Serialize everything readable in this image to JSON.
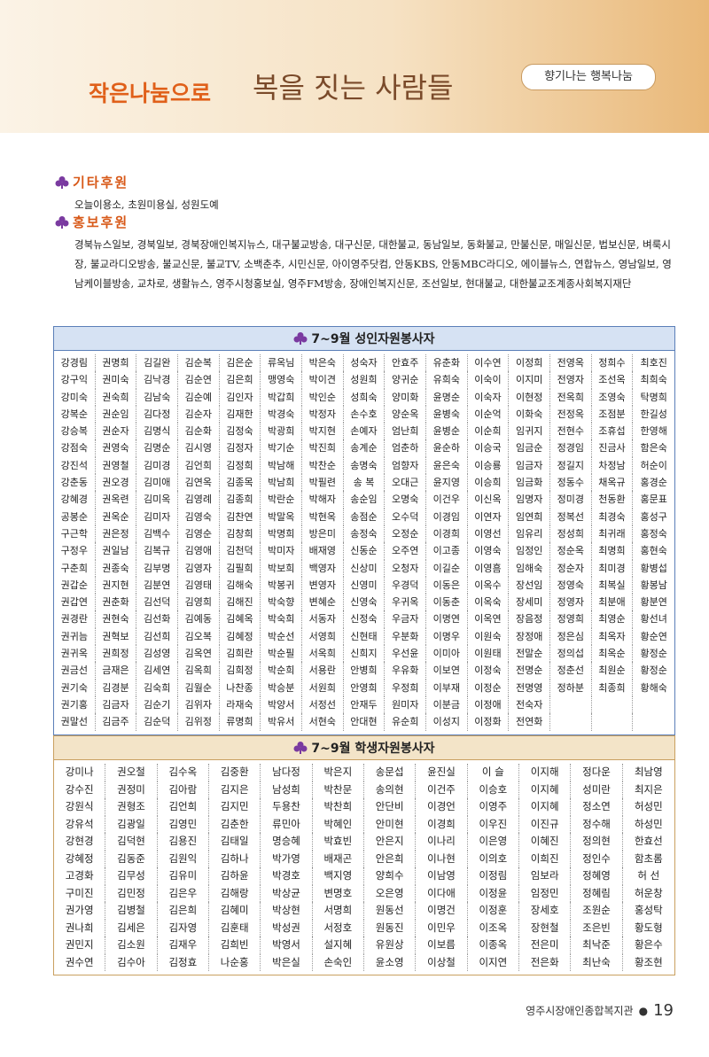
{
  "header": {
    "title": "작은나눔으로",
    "subtitle": "복을 짓는 사람들",
    "badge": "향기나는 행복나눔"
  },
  "sections": [
    {
      "heading": "기타후원",
      "text": "오늘이용소, 초원미용실, 성원도예"
    },
    {
      "heading": "홍보후원",
      "text": "경북뉴스일보, 경북일보, 경북장애인복지뉴스, 대구불교방송, 대구신문, 대한불교, 동남일보, 동화불교, 만불신문, 매일신문, 법보신문, 벼룩시장, 불교라디오방송, 불교신문, 불교TV, 소백춘추, 시민신문, 아이영주닷컴, 안동KBS, 안동MBC라디오, 에이블뉴스, 연합뉴스, 영남일보, 영남케이블방송, 교차로, 생활뉴스, 영주시청홍보실, 영주FM방송, 장애인복지신문, 조선일보, 현대불교, 대한불교조계종사회복지재단"
    }
  ],
  "tables": [
    {
      "title": "7~9월 성인자원봉사자",
      "rows": [
        [
          "강경림",
          "권명희",
          "김길완",
          "김순복",
          "김은순",
          "류옥님",
          "박은숙",
          "성숙자",
          "안효주",
          "유춘화",
          "이수연",
          "이정희",
          "전영옥",
          "정희수",
          "최호진"
        ],
        [
          "강구익",
          "권미숙",
          "김낙경",
          "김순연",
          "김은희",
          "맹영숙",
          "박이견",
          "성원희",
          "양귀순",
          "유희숙",
          "이숙이",
          "이지미",
          "전영자",
          "조선옥",
          "최희숙"
        ],
        [
          "강미숙",
          "권숙희",
          "김남숙",
          "김순예",
          "김인자",
          "박갑희",
          "박인순",
          "성희숙",
          "양미화",
          "윤명순",
          "이숙자",
          "이현정",
          "전옥희",
          "조영숙",
          "탁명희"
        ],
        [
          "강복순",
          "권순임",
          "김다정",
          "김순자",
          "김재한",
          "박경숙",
          "박정자",
          "손수호",
          "양순옥",
          "윤병숙",
          "이순억",
          "이화숙",
          "전정옥",
          "조점분",
          "한길성"
        ],
        [
          "강승복",
          "권순자",
          "김명식",
          "김순화",
          "김정숙",
          "박광희",
          "박지현",
          "손예자",
          "엄난희",
          "윤병순",
          "이순희",
          "임귀지",
          "전현수",
          "조휴섭",
          "한영해"
        ],
        [
          "강점숙",
          "권영숙",
          "김명순",
          "김시영",
          "김정자",
          "박기순",
          "박진희",
          "송계순",
          "엄춘하",
          "윤순하",
          "이승국",
          "임금순",
          "정경임",
          "진금사",
          "함은숙"
        ],
        [
          "강진석",
          "권영철",
          "김미경",
          "김언희",
          "김정희",
          "박남해",
          "박찬순",
          "송명숙",
          "엄향자",
          "윤은숙",
          "이승룡",
          "임금자",
          "정길지",
          "차정남",
          "허순이"
        ],
        [
          "강춘동",
          "권오경",
          "김미애",
          "김연옥",
          "김종목",
          "박남희",
          "박필련",
          "송 복",
          "오대근",
          "윤지영",
          "이승희",
          "임금화",
          "정동수",
          "채옥규",
          "홍경순"
        ],
        [
          "강혜경",
          "권옥련",
          "김미옥",
          "김영례",
          "김종희",
          "박란순",
          "박해자",
          "송순임",
          "오명숙",
          "이건우",
          "이신옥",
          "임명자",
          "정미경",
          "천동환",
          "홍문표"
        ],
        [
          "공봉순",
          "권옥순",
          "김미자",
          "김영숙",
          "김찬연",
          "박말옥",
          "박현옥",
          "송점순",
          "오수덕",
          "이경임",
          "이연자",
          "임연희",
          "정복선",
          "최경숙",
          "홍성구"
        ],
        [
          "구근학",
          "권은정",
          "김백수",
          "김영순",
          "김창희",
          "박명희",
          "방은미",
          "송정숙",
          "오정순",
          "이경희",
          "이영선",
          "임유리",
          "정성희",
          "최귀래",
          "홍정숙"
        ],
        [
          "구정우",
          "권일남",
          "김복규",
          "김영애",
          "김천덕",
          "박미자",
          "배재영",
          "신동순",
          "오주연",
          "이고종",
          "이영숙",
          "임정인",
          "정순옥",
          "최명희",
          "홍현숙"
        ],
        [
          "구춘희",
          "권종숙",
          "김부명",
          "김영자",
          "김필희",
          "박보희",
          "백영자",
          "신상미",
          "오청자",
          "이길순",
          "이영흠",
          "임해숙",
          "정순자",
          "최미경",
          "황병섭"
        ],
        [
          "권갑순",
          "권지현",
          "김분연",
          "김영태",
          "김해숙",
          "박봉귀",
          "변영자",
          "신영미",
          "우경덕",
          "이동은",
          "이옥수",
          "장선임",
          "정영숙",
          "최복실",
          "황봉남"
        ],
        [
          "권갑연",
          "권춘화",
          "김선덕",
          "김영희",
          "김해진",
          "박숙향",
          "변혜순",
          "신영숙",
          "우귀옥",
          "이동춘",
          "이옥숙",
          "장세미",
          "정영자",
          "최분애",
          "황분연"
        ],
        [
          "권경란",
          "권현숙",
          "김선화",
          "김예동",
          "김혜옥",
          "박숙희",
          "서동자",
          "신정숙",
          "우금자",
          "이명연",
          "이옥연",
          "장음정",
          "정영희",
          "최영순",
          "황선녀"
        ],
        [
          "권귀늠",
          "권혁보",
          "김선희",
          "김오복",
          "김혜정",
          "박순선",
          "서영희",
          "신현태",
          "우분화",
          "이명우",
          "이원숙",
          "장정애",
          "정은심",
          "최옥자",
          "황순연"
        ],
        [
          "권귀옥",
          "권희정",
          "김성영",
          "김옥연",
          "김희란",
          "박순필",
          "서옥희",
          "신희지",
          "우선윤",
          "이미아",
          "이원태",
          "전말순",
          "정의섭",
          "최옥순",
          "황정순"
        ],
        [
          "권금선",
          "금재은",
          "김세연",
          "김옥희",
          "김희정",
          "박순희",
          "서용란",
          "안병희",
          "우유화",
          "이보연",
          "이정숙",
          "전명순",
          "정춘선",
          "최원순",
          "황정순"
        ],
        [
          "권기숙",
          "김경분",
          "김숙희",
          "김월순",
          "나찬종",
          "박승분",
          "서원희",
          "안영희",
          "우정희",
          "이부재",
          "이정순",
          "전명영",
          "정하분",
          "최종희",
          "황해숙"
        ],
        [
          "권기홍",
          "김금자",
          "김순기",
          "김위자",
          "라재숙",
          "박양서",
          "서정선",
          "안재두",
          "원미자",
          "이분금",
          "이정애",
          "전숙자"
        ],
        [
          "권말선",
          "김금주",
          "김순덕",
          "김위정",
          "류명희",
          "박유서",
          "서현숙",
          "안대현",
          "유순희",
          "이성지",
          "이정화",
          "전연화"
        ]
      ]
    },
    {
      "title": "7~9월 학생자원봉사자",
      "rows": [
        [
          "강미나",
          "권오철",
          "김수옥",
          "김중환",
          "남다정",
          "박은지",
          "송문섭",
          "윤진실",
          "이 슬",
          "이지해",
          "정다운",
          "최남영"
        ],
        [
          "강수진",
          "권정미",
          "김아람",
          "김지은",
          "남성희",
          "박찬문",
          "송의현",
          "이건주",
          "이승호",
          "이지혜",
          "성미란",
          "최지은"
        ],
        [
          "강원식",
          "권형조",
          "김언희",
          "김지민",
          "두용찬",
          "박찬희",
          "안단비",
          "이경언",
          "이영주",
          "이지혜",
          "정소연",
          "허성민"
        ],
        [
          "강유석",
          "김광일",
          "김영민",
          "김춘한",
          "류민아",
          "박혜인",
          "안미현",
          "이경희",
          "이우진",
          "이진규",
          "정수해",
          "하성민"
        ],
        [
          "강현경",
          "김덕현",
          "김용진",
          "김태일",
          "명승혜",
          "박효빈",
          "안은지",
          "이나리",
          "이은영",
          "이혜진",
          "정의현",
          "한효선"
        ],
        [
          "강혜정",
          "김동준",
          "김원익",
          "김하나",
          "박가영",
          "배재곤",
          "안은희",
          "이나현",
          "이의호",
          "이희진",
          "정인수",
          "함초롬"
        ],
        [
          "고경화",
          "김무성",
          "김유미",
          "김하윤",
          "박경호",
          "백지영",
          "양희수",
          "이남영",
          "이정림",
          "임보라",
          "정혜영",
          "허 선"
        ],
        [
          "구미진",
          "김민정",
          "김은우",
          "김해랑",
          "박상균",
          "변명호",
          "오은영",
          "이다애",
          "이정윤",
          "임정민",
          "정혜림",
          "허운창"
        ],
        [
          "권가영",
          "김병철",
          "김은희",
          "김혜미",
          "박상현",
          "서명희",
          "원동선",
          "이명건",
          "이정훈",
          "장세호",
          "조원순",
          "홍성탁"
        ],
        [
          "권나희",
          "김세은",
          "김자영",
          "김훈태",
          "박성권",
          "서정호",
          "원동진",
          "이민우",
          "이조옥",
          "장현철",
          "조은빈",
          "황도형"
        ],
        [
          "권민지",
          "김소원",
          "김재우",
          "김희빈",
          "박영서",
          "설지혜",
          "유원상",
          "이보름",
          "이종옥",
          "전은미",
          "최낙준",
          "황은수"
        ],
        [
          "권수연",
          "김수아",
          "김정효",
          "나순홍",
          "박은실",
          "손숙인",
          "윤소영",
          "이상철",
          "이지연",
          "전은화",
          "최난숙",
          "황조현"
        ]
      ]
    }
  ],
  "footer": {
    "org": "영주시장애인종합복지관",
    "page": 19
  }
}
